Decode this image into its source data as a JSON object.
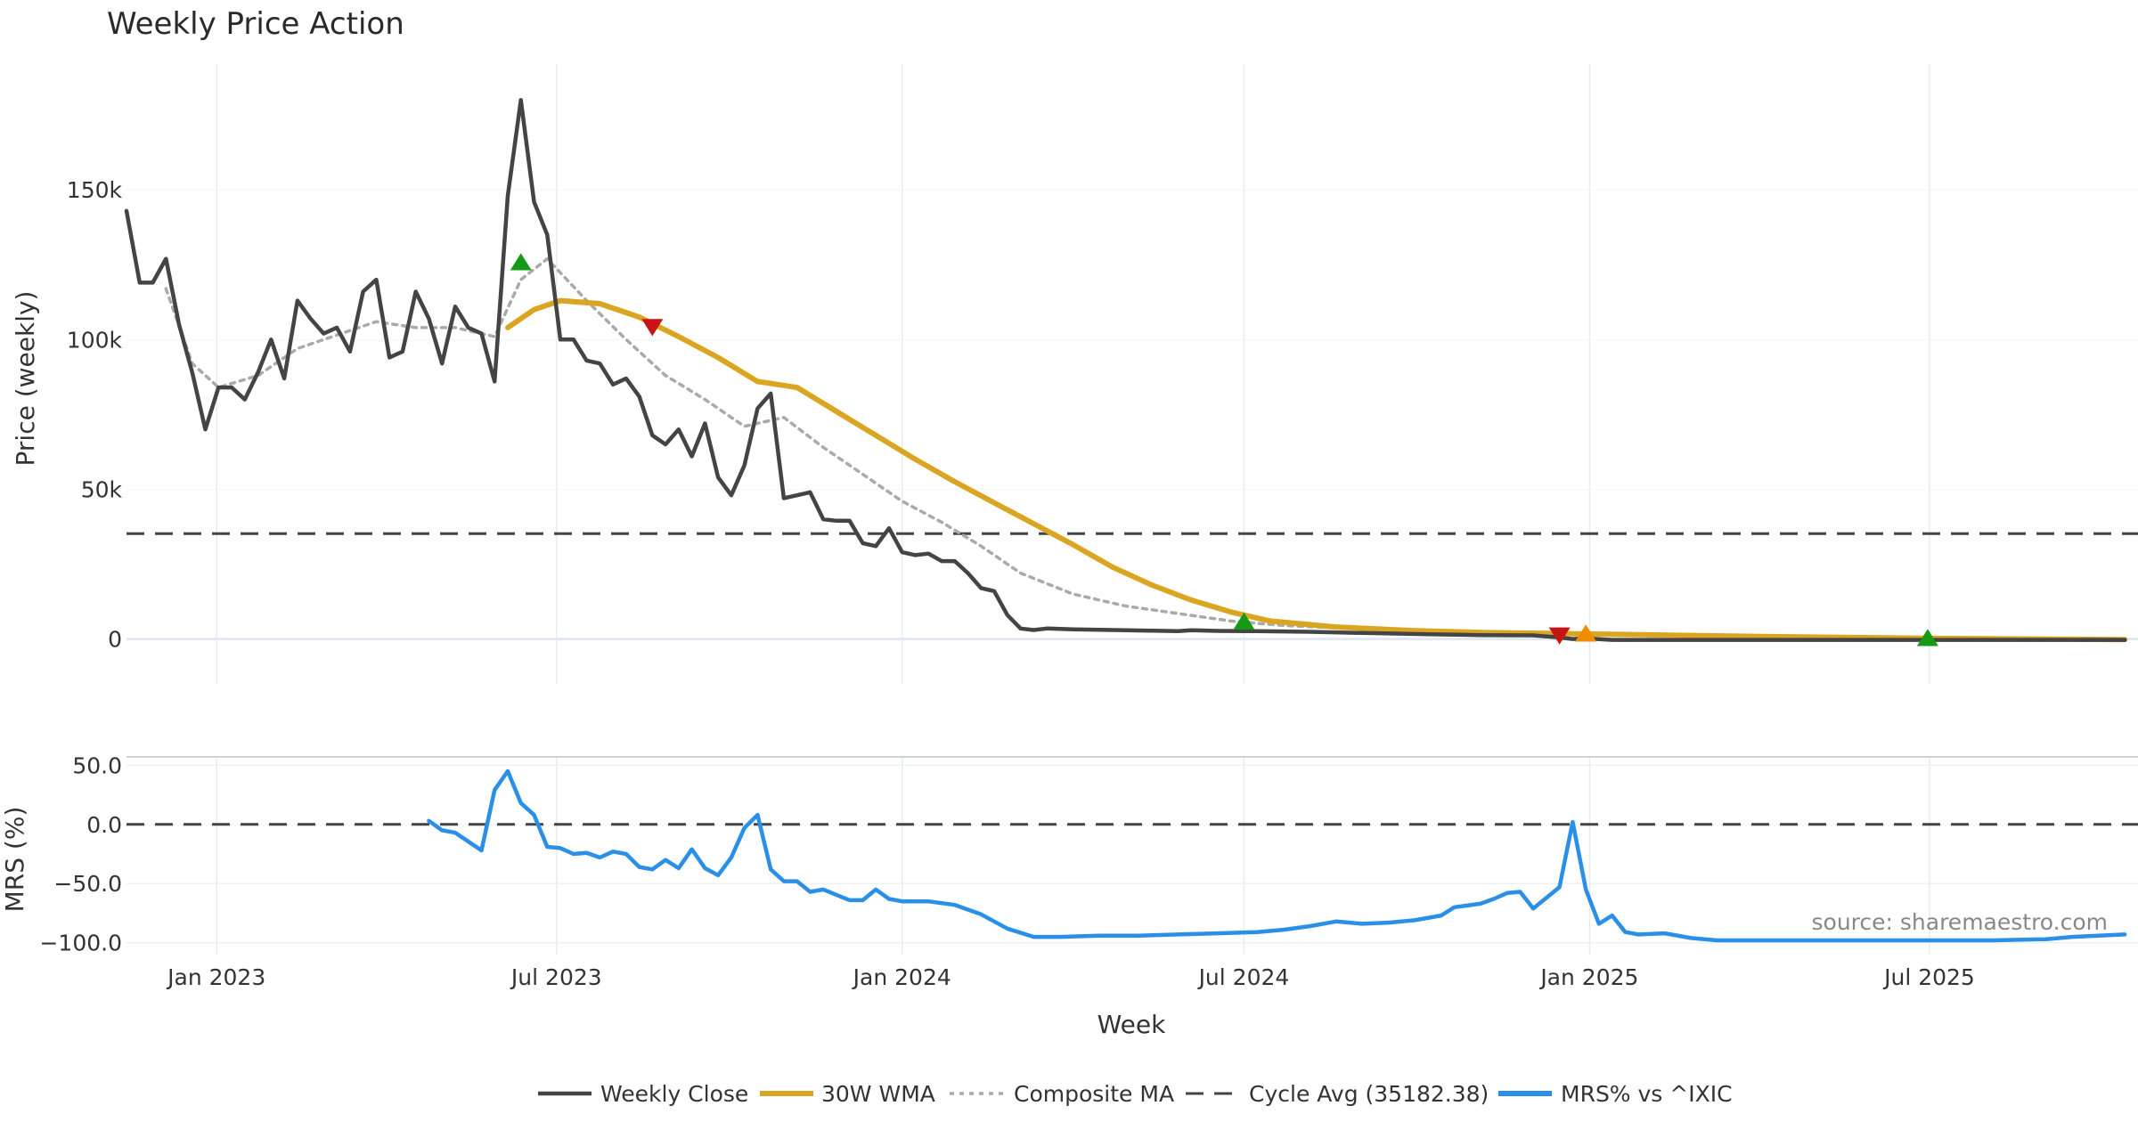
{
  "title": "Weekly Price Action",
  "source": "source: sharemaestro.com",
  "colors": {
    "close": "#444444",
    "wma": "#daa520",
    "composite": "#aaaaaa",
    "cycle": "#444444",
    "mrs": "#2a8fe6",
    "buy": "#159a15",
    "sell": "#c81414",
    "warn": "#f08c00"
  },
  "chart_data": [
    {
      "type": "line",
      "name": "price-panel",
      "ylabel": "Price (weekly)",
      "ylim": [
        -15000,
        192000
      ],
      "yticks": [
        0,
        50000,
        100000,
        150000
      ],
      "ytick_labels": [
        "0",
        "50k",
        "100k",
        "150k"
      ],
      "grid": true,
      "cycle_avg": 35182.38,
      "series": [
        {
          "name": "Weekly Close",
          "x": [
            "2022-11-14",
            "2022-11-21",
            "2022-11-28",
            "2022-12-05",
            "2022-12-12",
            "2022-12-19",
            "2022-12-26",
            "2023-01-02",
            "2023-01-09",
            "2023-01-16",
            "2023-01-23",
            "2023-01-30",
            "2023-02-06",
            "2023-02-13",
            "2023-02-20",
            "2023-02-27",
            "2023-03-06",
            "2023-03-13",
            "2023-03-20",
            "2023-03-27",
            "2023-04-03",
            "2023-04-10",
            "2023-04-17",
            "2023-04-24",
            "2023-05-01",
            "2023-05-08",
            "2023-05-15",
            "2023-05-22",
            "2023-05-29",
            "2023-06-05",
            "2023-06-12",
            "2023-06-19",
            "2023-06-26",
            "2023-07-03",
            "2023-07-10",
            "2023-07-17",
            "2023-07-24",
            "2023-07-31",
            "2023-08-07",
            "2023-08-14",
            "2023-08-21",
            "2023-08-28",
            "2023-09-04",
            "2023-09-11",
            "2023-09-18",
            "2023-09-25",
            "2023-10-02",
            "2023-10-09",
            "2023-10-16",
            "2023-10-23",
            "2023-10-30",
            "2023-11-06",
            "2023-11-13",
            "2023-11-20",
            "2023-11-27",
            "2023-12-04",
            "2023-12-11",
            "2023-12-18",
            "2023-12-25",
            "2024-01-01",
            "2024-01-08",
            "2024-01-15",
            "2024-01-22",
            "2024-01-29",
            "2024-02-05",
            "2024-02-12",
            "2024-02-19",
            "2024-02-26",
            "2024-03-04",
            "2024-03-11",
            "2024-03-18",
            "2024-04-01",
            "2024-04-22",
            "2024-05-13",
            "2024-05-27",
            "2024-06-03",
            "2024-06-17",
            "2024-07-08",
            "2024-08-05",
            "2024-09-02",
            "2024-10-07",
            "2024-11-04",
            "2024-12-02",
            "2024-12-16",
            "2024-12-23",
            "2024-12-30",
            "2025-01-13",
            "2025-03-03",
            "2025-05-05",
            "2025-07-07",
            "2025-09-01",
            "2025-10-13"
          ],
          "y": [
            143000,
            119000,
            119000,
            127000,
            105000,
            89000,
            70000,
            84000,
            84000,
            80000,
            89000,
            100000,
            87000,
            113000,
            107000,
            102000,
            104000,
            96000,
            116000,
            120000,
            94000,
            96000,
            116000,
            107000,
            92000,
            111000,
            104000,
            102000,
            86000,
            148000,
            180000,
            146000,
            135000,
            100000,
            100000,
            93000,
            92000,
            85000,
            87000,
            81000,
            68000,
            65000,
            70000,
            61000,
            72000,
            54000,
            48000,
            58000,
            77000,
            82000,
            47000,
            48000,
            49000,
            40000,
            39500,
            39500,
            32000,
            31000,
            37000,
            29000,
            28000,
            28500,
            26000,
            26000,
            22000,
            17000,
            16000,
            8000,
            3500,
            3000,
            3500,
            3200,
            3000,
            2800,
            2600,
            2900,
            2700,
            2600,
            2400,
            2000,
            1600,
            1300,
            1200,
            500,
            0,
            200,
            -300,
            -300,
            -300,
            -300,
            -300,
            -300
          ],
          "style": "solid"
        },
        {
          "name": "30W WMA",
          "x": [
            "2023-06-05",
            "2023-06-19",
            "2023-07-03",
            "2023-07-24",
            "2023-08-14",
            "2023-09-04",
            "2023-09-25",
            "2023-10-16",
            "2023-11-06",
            "2023-11-27",
            "2023-12-18",
            "2024-01-08",
            "2024-01-29",
            "2024-02-19",
            "2024-03-11",
            "2024-04-01",
            "2024-04-22",
            "2024-05-13",
            "2024-06-03",
            "2024-06-24",
            "2024-07-15",
            "2024-08-19",
            "2024-09-30",
            "2024-11-04",
            "2024-12-16",
            "2025-01-20",
            "2025-04-07",
            "2025-07-07",
            "2025-10-13"
          ],
          "y": [
            104000,
            110000,
            113000,
            112000,
            107500,
            101000,
            94000,
            86000,
            84000,
            76000,
            68000,
            60000,
            52500,
            45500,
            38500,
            31500,
            24000,
            18000,
            13000,
            9000,
            6000,
            4000,
            2800,
            2200,
            1800,
            1500,
            800,
            200,
            -200
          ],
          "style": "solid"
        },
        {
          "name": "Composite MA",
          "x": [
            "2022-12-05",
            "2022-12-19",
            "2023-01-02",
            "2023-01-23",
            "2023-02-13",
            "2023-03-06",
            "2023-03-27",
            "2023-04-17",
            "2023-05-08",
            "2023-05-29",
            "2023-06-12",
            "2023-06-26",
            "2023-07-17",
            "2023-08-07",
            "2023-08-28",
            "2023-09-18",
            "2023-10-09",
            "2023-10-30",
            "2023-11-20",
            "2023-12-11",
            "2024-01-01",
            "2024-01-22",
            "2024-02-12",
            "2024-03-04",
            "2024-04-01",
            "2024-04-29",
            "2024-05-27",
            "2024-06-24",
            "2024-07-22",
            "2024-08-26",
            "2024-10-07",
            "2024-11-18",
            "2024-12-30",
            "2025-04-07",
            "2025-07-07",
            "2025-10-13"
          ],
          "y": [
            117000,
            92000,
            84000,
            88000,
            97000,
            101500,
            106000,
            104000,
            104000,
            101000,
            120000,
            127000,
            113000,
            100000,
            88000,
            80000,
            71000,
            74000,
            64000,
            55000,
            46000,
            39000,
            31000,
            22000,
            15000,
            11000,
            8500,
            6000,
            4500,
            3500,
            2800,
            2300,
            1800,
            800,
            200,
            -200
          ],
          "style": "dotted"
        }
      ],
      "signals": [
        {
          "x": "2023-06-12",
          "y": 126000,
          "kind": "buy"
        },
        {
          "x": "2023-08-21",
          "y": 104000,
          "kind": "sell"
        },
        {
          "x": "2024-07-01",
          "y": 6000,
          "kind": "buy"
        },
        {
          "x": "2024-12-16",
          "y": 1000,
          "kind": "sell"
        },
        {
          "x": "2024-12-30",
          "y": 2000,
          "kind": "warn"
        },
        {
          "x": "2025-06-30",
          "y": 500,
          "kind": "buy"
        }
      ]
    },
    {
      "type": "line",
      "name": "mrs-panel",
      "ylabel": "MRS (%)",
      "xlabel": "Week",
      "ylim": [
        -110,
        57
      ],
      "yticks": [
        50,
        0,
        -50,
        -100
      ],
      "ytick_labels": [
        "50.0",
        "0.0",
        "−50.0",
        "−100.0"
      ],
      "reference_line": 0,
      "xticks": [
        "2023-01-01",
        "2023-07-01",
        "2024-01-01",
        "2024-07-01",
        "2025-01-01",
        "2025-07-01"
      ],
      "xtick_labels": [
        "Jan 2023",
        "Jul 2023",
        "Jan 2024",
        "Jul 2024",
        "Jan 2025",
        "Jul 2025"
      ],
      "grid": true,
      "series": [
        {
          "name": "MRS% vs ^IXIC",
          "x": [
            "2023-04-24",
            "2023-05-01",
            "2023-05-08",
            "2023-05-22",
            "2023-05-29",
            "2023-06-05",
            "2023-06-12",
            "2023-06-19",
            "2023-06-26",
            "2023-07-03",
            "2023-07-10",
            "2023-07-17",
            "2023-07-24",
            "2023-07-31",
            "2023-08-07",
            "2023-08-14",
            "2023-08-21",
            "2023-08-28",
            "2023-09-04",
            "2023-09-11",
            "2023-09-18",
            "2023-09-25",
            "2023-10-02",
            "2023-10-09",
            "2023-10-16",
            "2023-10-23",
            "2023-10-30",
            "2023-11-06",
            "2023-11-13",
            "2023-11-20",
            "2023-12-04",
            "2023-12-11",
            "2023-12-18",
            "2023-12-25",
            "2024-01-01",
            "2024-01-15",
            "2024-01-29",
            "2024-02-12",
            "2024-02-26",
            "2024-03-11",
            "2024-03-25",
            "2024-04-15",
            "2024-05-06",
            "2024-05-27",
            "2024-06-17",
            "2024-07-08",
            "2024-07-22",
            "2024-08-05",
            "2024-08-19",
            "2024-09-02",
            "2024-09-16",
            "2024-09-30",
            "2024-10-14",
            "2024-10-21",
            "2024-11-04",
            "2024-11-11",
            "2024-11-18",
            "2024-11-25",
            "2024-12-02",
            "2024-12-09",
            "2024-12-16",
            "2024-12-23",
            "2024-12-30",
            "2025-01-06",
            "2025-01-13",
            "2025-01-20",
            "2025-01-27",
            "2025-02-10",
            "2025-02-24",
            "2025-03-10",
            "2025-03-24",
            "2025-04-07",
            "2025-05-05",
            "2025-06-02",
            "2025-07-07",
            "2025-08-04",
            "2025-09-01",
            "2025-09-15",
            "2025-10-13"
          ],
          "y": [
            3,
            -5,
            -7,
            -22,
            29,
            45,
            18,
            8,
            -19,
            -20,
            -25,
            -24,
            -28,
            -23,
            -25,
            -36,
            -38,
            -30,
            -37,
            -21,
            -37,
            -43,
            -28,
            -3,
            8,
            -38,
            -48,
            -48,
            -57,
            -55,
            -64,
            -64,
            -55,
            -63,
            -65,
            -65,
            -68,
            -76,
            -88,
            -95,
            -95,
            -94,
            -94,
            -93,
            -92,
            -91,
            -89,
            -86,
            -82,
            -84,
            -83,
            -81,
            -77,
            -70,
            -67,
            -63,
            -58,
            -57,
            -71,
            -62,
            -53,
            2,
            -55,
            -84,
            -77,
            -91,
            -93,
            -92,
            -96,
            -98,
            -98,
            -98,
            -98,
            -98,
            -98,
            -98,
            -97,
            -95,
            -93
          ],
          "style": "solid"
        }
      ]
    }
  ],
  "legend": [
    {
      "label": "Weekly Close",
      "style": "solid",
      "color": "#444444"
    },
    {
      "label": "30W WMA",
      "style": "solid-thick",
      "color": "#daa520"
    },
    {
      "label": "Composite MA",
      "style": "dotted",
      "color": "#aaaaaa"
    },
    {
      "label": "Cycle Avg (35182.38)",
      "style": "dashed",
      "color": "#444444"
    },
    {
      "label": "MRS% vs ^IXIC",
      "style": "solid-thick",
      "color": "#2a8fe6"
    }
  ]
}
